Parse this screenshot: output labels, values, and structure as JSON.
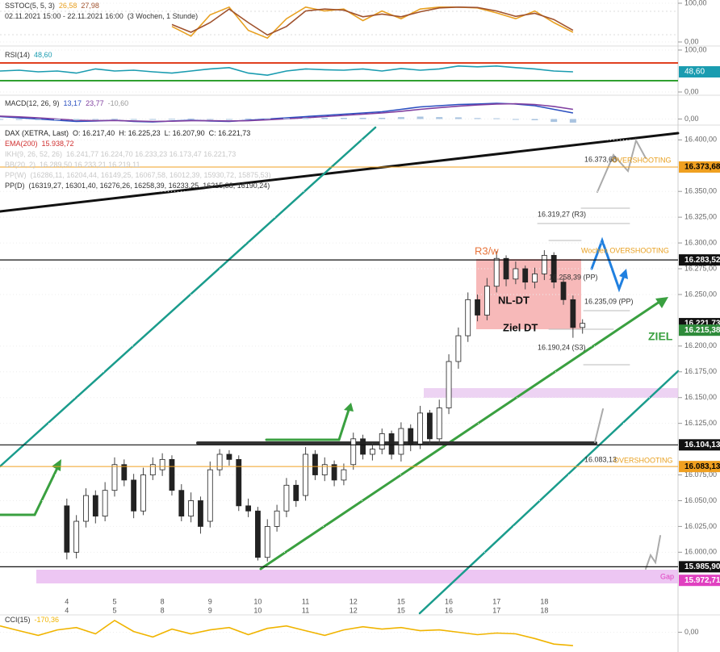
{
  "chart_data": [
    {
      "type": "line",
      "title": "SSTOC(5, 5, 3)",
      "subtitle": "02.11.2021 15:00 - 22.11.2021 16:00",
      "period": "(3 Wochen, 1 Stunde)",
      "xlim": [
        -7,
        64
      ],
      "ylim": [
        0,
        100
      ],
      "yticks": [
        {
          "value": 100,
          "label": "100,00"
        },
        {
          "value": 0,
          "label": "0,00"
        }
      ],
      "x": [
        -7,
        -5,
        -3,
        -1,
        1,
        3,
        5,
        7,
        9,
        11,
        13,
        15,
        17,
        19,
        21,
        23,
        25,
        27,
        29,
        31,
        33,
        35,
        37,
        39,
        41,
        43,
        45,
        47,
        49,
        51,
        53
      ],
      "series": [
        {
          "color": "#e8a020",
          "readout": "26,58",
          "values": [
            null,
            null,
            null,
            null,
            null,
            null,
            null,
            null,
            null,
            40,
            15,
            70,
            90,
            30,
            10,
            60,
            90,
            80,
            85,
            55,
            80,
            60,
            85,
            90,
            90,
            88,
            75,
            60,
            80,
            50,
            25
          ]
        },
        {
          "color": "#a0522d",
          "readout": "27,98",
          "values": [
            null,
            null,
            null,
            null,
            null,
            null,
            null,
            null,
            null,
            45,
            25,
            50,
            85,
            50,
            18,
            40,
            80,
            85,
            82,
            65,
            72,
            65,
            78,
            88,
            90,
            89,
            80,
            66,
            74,
            58,
            30
          ]
        }
      ]
    },
    {
      "type": "line",
      "title": "RSI(14)",
      "xlim": [
        -7,
        64
      ],
      "ylim": [
        0,
        100
      ],
      "yticks": [
        {
          "value": 100,
          "label": "100,00"
        },
        {
          "value": 0,
          "label": "0,00"
        }
      ],
      "x": [
        -7,
        -5,
        -3,
        -1,
        1,
        3,
        5,
        7,
        9,
        11,
        13,
        15,
        17,
        19,
        21,
        23,
        25,
        27,
        29,
        31,
        33,
        35,
        37,
        39,
        41,
        43,
        45,
        47,
        49,
        51,
        53
      ],
      "series": [
        {
          "color": "#1a9cb0",
          "readout": "48,60",
          "values": [
            50,
            52,
            48,
            50,
            45,
            55,
            50,
            52,
            48,
            45,
            50,
            55,
            58,
            45,
            40,
            50,
            55,
            53,
            52,
            55,
            50,
            56,
            52,
            55,
            62,
            60,
            62,
            58,
            55,
            50,
            48
          ]
        }
      ]
    },
    {
      "type": "line",
      "title": "MACD(12, 26, 9)",
      "xlim": [
        -7,
        64
      ],
      "ylim": [
        -15,
        85
      ],
      "yticks": [
        {
          "value": 0,
          "label": "0,00"
        }
      ],
      "x": [
        -7,
        -5,
        -3,
        -1,
        1,
        3,
        5,
        7,
        9,
        11,
        13,
        15,
        17,
        19,
        21,
        23,
        25,
        27,
        29,
        31,
        33,
        35,
        37,
        39,
        41,
        43,
        45,
        47,
        49,
        51,
        53
      ],
      "series": [
        {
          "color": "#2a4fc0",
          "readout": "13,17",
          "values": [
            10,
            5,
            0,
            -5,
            -10,
            -8,
            -5,
            -10,
            -12,
            -8,
            -5,
            -8,
            -10,
            -5,
            0,
            5,
            10,
            15,
            20,
            25,
            30,
            40,
            50,
            55,
            60,
            62,
            65,
            62,
            55,
            40,
            25
          ]
        },
        {
          "color": "#8040a0",
          "readout": "23,77",
          "values": [
            12,
            9,
            5,
            0,
            -5,
            -7,
            -6,
            -8,
            -10,
            -9,
            -7,
            -7,
            -8,
            -7,
            -3,
            1,
            5,
            10,
            15,
            20,
            25,
            32,
            40,
            47,
            53,
            58,
            62,
            63,
            60,
            52,
            40
          ]
        },
        {
          "color": "#aac4e0",
          "readout": "-10,60",
          "bars": true,
          "values": [
            -2,
            -4,
            -5,
            -5,
            -5,
            -1,
            1,
            -2,
            -2,
            1,
            2,
            -1,
            -2,
            2,
            3,
            4,
            5,
            5,
            5,
            5,
            5,
            8,
            10,
            8,
            7,
            4,
            3,
            -1,
            -5,
            -12,
            -15
          ]
        }
      ]
    },
    {
      "type": "candlestick",
      "title": "DAX (XETRA, Last)",
      "ohlc_readout": [
        "O: 16.217,40",
        "H: 16.225,23",
        "L: 16.207,90",
        "C: 16.221,73"
      ],
      "overlays": [
        {
          "name": "EMA(200)",
          "readout": "15.938,72",
          "color": "#d03030"
        },
        {
          "name": "IKH(9, 26, 52, 26)",
          "readout": "16.241,77  16.224,70  16.233,23  16.173,47  16.221,73",
          "color": "#c8c8c8"
        },
        {
          "name": "BB(20, 2)",
          "readout": "16.289,50  16.233,21  16.219,11",
          "color": "#c8c8c8"
        },
        {
          "name": "PP(W)",
          "readout": "(16286,11, 16204,44, 16149,25, 16067,58, 16012,39, 15930,72, 15875,53)",
          "color": "#c8c8c8"
        },
        {
          "name": "PP(D)",
          "readout": "(16319,27, 16301,40, 16276,26, 16258,39, 16233,25, 16215,38, 16190,24)",
          "color": "#333333"
        }
      ],
      "xlim": [
        -7,
        64
      ],
      "ylim": [
        15958,
        16412
      ],
      "yticks": [
        {
          "value": 16400,
          "label": "16.400,00"
        },
        {
          "value": 16350,
          "label": "16.350,00"
        },
        {
          "value": 16325,
          "label": "16.325,00"
        },
        {
          "value": 16300,
          "label": "16.300,00"
        },
        {
          "value": 16275,
          "label": "16.275,00"
        },
        {
          "value": 16250,
          "label": "16.250,00"
        },
        {
          "value": 16200,
          "label": "16.200,00"
        },
        {
          "value": 16175,
          "label": "16.175,00"
        },
        {
          "value": 16150,
          "label": "16.150,00"
        },
        {
          "value": 16125,
          "label": "16.125,00"
        },
        {
          "value": 16075,
          "label": "16.075,00"
        },
        {
          "value": 16050,
          "label": "16.050,00"
        },
        {
          "value": 16025,
          "label": "16.025,00"
        },
        {
          "value": 16000,
          "label": "16.000,00"
        }
      ],
      "xticks": [
        {
          "value": 0,
          "label": "4"
        },
        {
          "value": 5,
          "label": "5"
        },
        {
          "value": 10,
          "label": "8"
        },
        {
          "value": 15,
          "label": "9"
        },
        {
          "value": 20,
          "label": "10"
        },
        {
          "value": 25,
          "label": "11"
        },
        {
          "value": 30,
          "label": "12"
        },
        {
          "value": 35,
          "label": "15"
        },
        {
          "value": 40,
          "label": "16"
        },
        {
          "value": 45,
          "label": "17"
        },
        {
          "value": 50,
          "label": "18"
        }
      ],
      "x": [
        0,
        1,
        2,
        3,
        4,
        5,
        6,
        7,
        8,
        9,
        10,
        11,
        12,
        13,
        14,
        15,
        16,
        17,
        18,
        19,
        20,
        21,
        22,
        23,
        24,
        25,
        26,
        27,
        28,
        29,
        30,
        31,
        32,
        33,
        34,
        35,
        36,
        37,
        38,
        39,
        40,
        41,
        42,
        43,
        44,
        45,
        46,
        47,
        48,
        49,
        50,
        51,
        52,
        53,
        54
      ],
      "open": [
        16045,
        16000,
        16030,
        16055,
        16035,
        16060,
        16085,
        16070,
        16040,
        16075,
        16080,
        16090,
        16060,
        16035,
        16050,
        16030,
        16080,
        16095,
        16090,
        16045,
        16040,
        15995,
        16025,
        16040,
        16065,
        16055,
        16095,
        16075,
        16085,
        16070,
        16085,
        16110,
        16095,
        16100,
        16115,
        16095,
        16120,
        16105,
        16135,
        16110,
        16140,
        16185,
        16210,
        16245,
        16230,
        16258,
        16285,
        16265,
        16275,
        16262,
        16270,
        16288,
        16262,
        16245,
        16218
      ],
      "high": [
        16052,
        16036,
        16062,
        16060,
        16068,
        16092,
        16090,
        16076,
        16082,
        16092,
        16096,
        16094,
        16066,
        16058,
        16054,
        16088,
        16100,
        16099,
        16094,
        16052,
        16044,
        16032,
        16046,
        16072,
        16070,
        16102,
        16099,
        16092,
        16089,
        16086,
        16116,
        16114,
        16106,
        16120,
        16118,
        16126,
        16124,
        16142,
        16138,
        16148,
        16192,
        16218,
        16252,
        16250,
        16266,
        16292,
        16288,
        16282,
        16278,
        16276,
        16293,
        16291,
        16266,
        16249,
        16226
      ],
      "low": [
        15993,
        15994,
        16024,
        16028,
        16030,
        16054,
        16064,
        16033,
        16036,
        16070,
        16074,
        16055,
        16030,
        16029,
        16018,
        16024,
        16074,
        16084,
        16040,
        16034,
        15992,
        15991,
        16020,
        16034,
        16044,
        16050,
        16070,
        16069,
        16064,
        16065,
        16080,
        16090,
        16089,
        16095,
        16090,
        16088,
        16098,
        16100,
        16104,
        16105,
        16134,
        16178,
        16204,
        16224,
        16225,
        16252,
        16258,
        16260,
        16255,
        16256,
        16264,
        16256,
        16240,
        16208,
        16212
      ],
      "close": [
        16000,
        16030,
        16055,
        16035,
        16060,
        16085,
        16070,
        16040,
        16075,
        16085,
        16090,
        16060,
        16035,
        16050,
        16025,
        16080,
        16095,
        16090,
        16045,
        16040,
        15995,
        16025,
        16040,
        16065,
        16050,
        16095,
        16075,
        16085,
        16070,
        16080,
        16110,
        16095,
        16100,
        16115,
        16095,
        16120,
        16105,
        16135,
        16110,
        16140,
        16185,
        16210,
        16245,
        16230,
        16258,
        16285,
        16265,
        16275,
        16262,
        16270,
        16288,
        16262,
        16245,
        16218,
        16222
      ],
      "price_labels": [
        {
          "value": 16373.68,
          "label": "16.373,68",
          "color": "#f0a020",
          "text_color": "#000000",
          "line": true
        },
        {
          "value": 16283.52,
          "label": "16.283,52",
          "color": "#111111",
          "text_color": "#ffffff",
          "line": true
        },
        {
          "value": 16221.73,
          "label": "16.221,73",
          "color": "#111111",
          "text_color": "#ffffff",
          "line": false
        },
        {
          "value": 16215.38,
          "label": "16.215,38",
          "color": "#2e8b3a",
          "text_color": "#ffffff",
          "line": false
        },
        {
          "value": 16104.13,
          "label": "16.104,13",
          "color": "#111111",
          "text_color": "#ffffff",
          "line": true
        },
        {
          "value": 16083.13,
          "label": "16.083,13",
          "color": "#f0a020",
          "text_color": "#000000",
          "line": true
        },
        {
          "value": 15985.9,
          "label": "15.985,90",
          "color": "#111111",
          "text_color": "#ffffff",
          "line": true
        },
        {
          "value": 15972.71,
          "label": "15.972,71",
          "color": "#e040c0",
          "text_color": "#ffffff",
          "line": false
        }
      ],
      "annotations": [
        {
          "text": "R3/w",
          "color": "#e8743b"
        },
        {
          "text": "NL-DT",
          "color": "#111111"
        },
        {
          "text": "Ziel DT",
          "color": "#111111"
        },
        {
          "text": "ZIEL",
          "color": "#3aa040"
        },
        {
          "text": "16.373,68",
          "color": "#333333"
        },
        {
          "text": "OVERSHOOTING",
          "color": "#e8a020"
        },
        {
          "text": "16.319,27 (R3)",
          "color": "#333333"
        },
        {
          "text": "Wochen OVERSHOOTING",
          "color": "#e8a020"
        },
        {
          "text": "16.258,39 (PP)",
          "color": "#333333"
        },
        {
          "text": "16.235,09 (PP)",
          "color": "#333333"
        },
        {
          "text": "16.190,24 (S3)",
          "color": "#333333"
        },
        {
          "text": "16.083,13",
          "color": "#333333"
        },
        {
          "text": "OVERSHOOTING",
          "color": "#e8a020"
        },
        {
          "text": "Gap",
          "color": "#e040c0"
        }
      ]
    },
    {
      "type": "line",
      "title": "CCI(15)",
      "xlim": [
        -7,
        64
      ],
      "ylim": [
        -230,
        200
      ],
      "yticks": [
        {
          "value": 0,
          "label": "0,00"
        }
      ],
      "x": [
        -7,
        -5,
        -3,
        -1,
        1,
        3,
        5,
        7,
        9,
        11,
        13,
        15,
        17,
        19,
        21,
        23,
        25,
        27,
        29,
        31,
        33,
        35,
        37,
        39,
        41,
        43,
        45,
        47,
        49,
        51,
        53
      ],
      "series": [
        {
          "color": "#f0b400",
          "readout": "-170,36",
          "values": [
            80,
            20,
            -40,
            30,
            60,
            -20,
            150,
            10,
            -60,
            40,
            -20,
            30,
            60,
            -30,
            50,
            80,
            20,
            -40,
            30,
            70,
            40,
            60,
            20,
            30,
            0,
            -30,
            -10,
            -20,
            -80,
            -150,
            -170
          ]
        }
      ]
    }
  ]
}
